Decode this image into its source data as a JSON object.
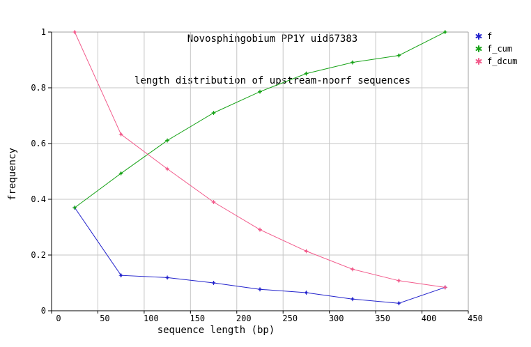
{
  "colors": {
    "background": "#ffffff",
    "grid": "#c6c6c6",
    "border_gray": "#a2a2a2",
    "axis": "#000000",
    "text": "#000000"
  },
  "chart_data": {
    "type": "line",
    "title": "Novosphingobium PP1Y uid67383",
    "subtitle": "length distribution of upstream-noorf sequences",
    "xlabel": "sequence length (bp)",
    "ylabel": "frequency",
    "xlim": [
      0,
      450
    ],
    "ylim": [
      0,
      1
    ],
    "xticks": [
      0,
      50,
      100,
      150,
      200,
      250,
      300,
      350,
      400,
      450
    ],
    "yticks": [
      0,
      0.2,
      0.4,
      0.6,
      0.8,
      1
    ],
    "grid": true,
    "legend_position": "outside-top-right",
    "x": [
      25,
      75,
      125,
      175,
      225,
      275,
      325,
      375,
      425
    ],
    "series": [
      {
        "name": "f",
        "color": "#2222cc",
        "values": [
          0.37,
          0.127,
          0.119,
          0.1,
          0.077,
          0.065,
          0.042,
          0.027,
          0.084
        ]
      },
      {
        "name": "f_cum",
        "color": "#17a317",
        "values": [
          0.37,
          0.493,
          0.611,
          0.71,
          0.786,
          0.851,
          0.891,
          0.916,
          1.0
        ]
      },
      {
        "name": "f_dcum",
        "color": "#f25a8b",
        "values": [
          1.0,
          0.633,
          0.509,
          0.39,
          0.291,
          0.214,
          0.149,
          0.108,
          0.084
        ]
      }
    ]
  }
}
